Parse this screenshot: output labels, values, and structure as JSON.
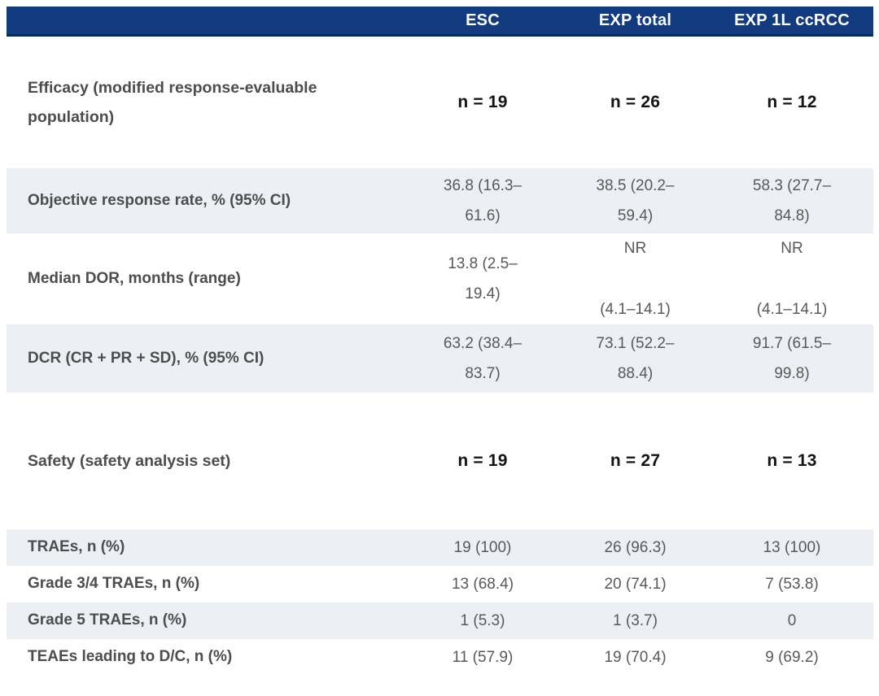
{
  "colors": {
    "header_bg": "#123a7f",
    "header_bg_edge": "#0b2c63",
    "header_text": "#ffffff",
    "shaded_row_bg": "#ecf0f5",
    "label_text": "#4d4d4d",
    "value_text": "#595959",
    "n_text": "#141414"
  },
  "chart_data": {
    "type": "table",
    "title": "",
    "columns": [
      "",
      "ESC",
      "EXP total",
      "EXP 1L ccRCC"
    ],
    "sections": [
      {
        "title": "Efficacy (modified response-evaluable population)",
        "n_values": [
          "n = 19",
          "n = 26",
          "n = 12"
        ],
        "rows": [
          {
            "label": "Objective response rate, % (95% CI)",
            "values": [
              "36.8 (16.3–\n61.6)",
              "38.5 (20.2–\n59.4)",
              "58.3 (27.7–\n84.8)"
            ]
          },
          {
            "label": "Median DOR, months (range)",
            "values": [
              "13.8 (2.5–\n19.4)",
              "NR\n\n(4.1–14.1)",
              "NR\n\n(4.1–14.1)"
            ]
          },
          {
            "label": "DCR (CR + PR + SD), % (95% CI)",
            "values": [
              "63.2 (38.4–\n83.7)",
              "73.1 (52.2–\n88.4)",
              "91.7 (61.5–\n99.8)"
            ]
          }
        ]
      },
      {
        "title": "Safety (safety analysis set)",
        "n_values": [
          "n = 19",
          "n = 27",
          "n = 13"
        ],
        "rows": [
          {
            "label": "TRAEs, n (%)",
            "values": [
              "19 (100)",
              "26 (96.3)",
              "13 (100)"
            ]
          },
          {
            "label": "Grade 3/4 TRAEs, n (%)",
            "values": [
              "13 (68.4)",
              "20 (74.1)",
              "7 (53.8)"
            ]
          },
          {
            "label": "Grade 5 TRAEs, n (%)",
            "values": [
              "1 (5.3)",
              "1 (3.7)",
              "0"
            ]
          },
          {
            "label": "TEAEs leading to D/C, n (%)",
            "values": [
              "11 (57.9)",
              "19 (70.4)",
              "9 (69.2)"
            ]
          }
        ]
      }
    ]
  }
}
